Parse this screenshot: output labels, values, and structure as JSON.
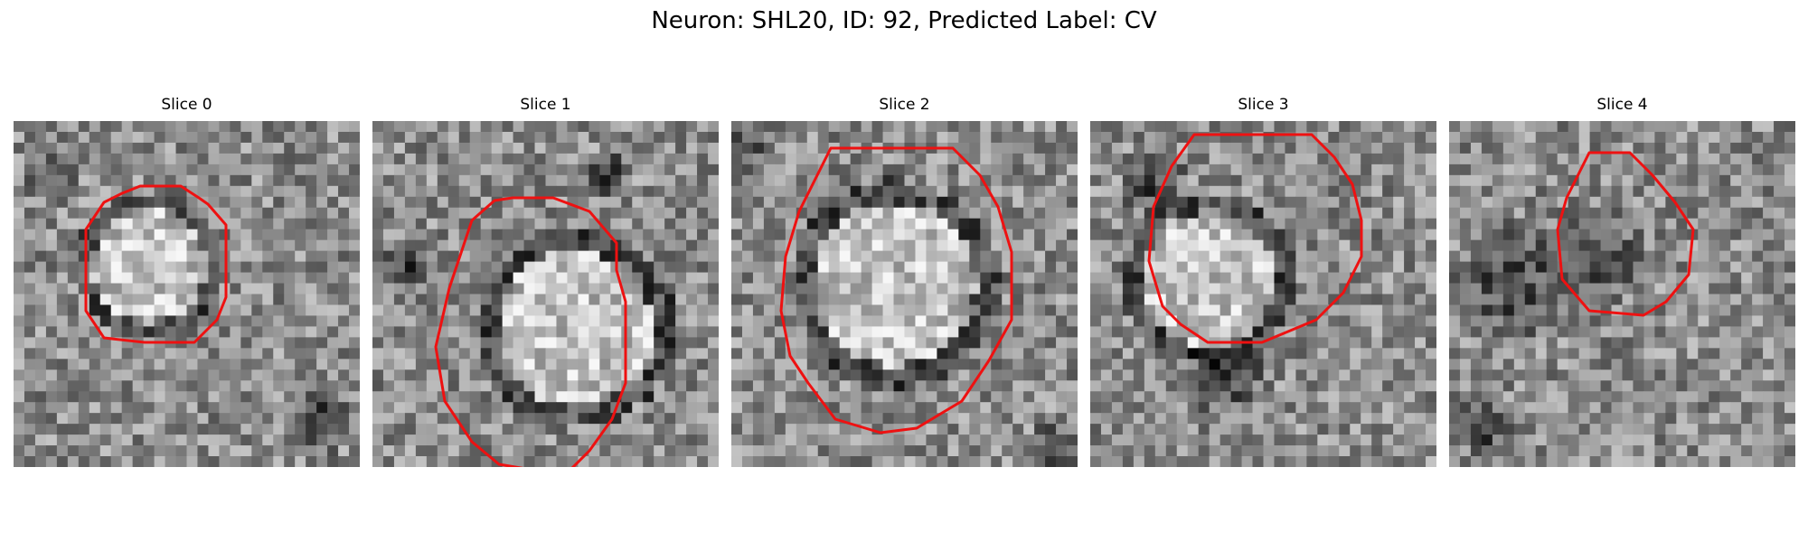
{
  "figure": {
    "title": "Neuron: SHL20, ID: 92, Predicted Label: CV"
  },
  "panels": [
    {
      "title": "Slice 0"
    },
    {
      "title": "Slice 1"
    },
    {
      "title": "Slice 2"
    },
    {
      "title": "Slice 3"
    },
    {
      "title": "Slice 4"
    }
  ],
  "colors": {
    "contour": "#ee1111",
    "background": "#ffffff"
  }
}
